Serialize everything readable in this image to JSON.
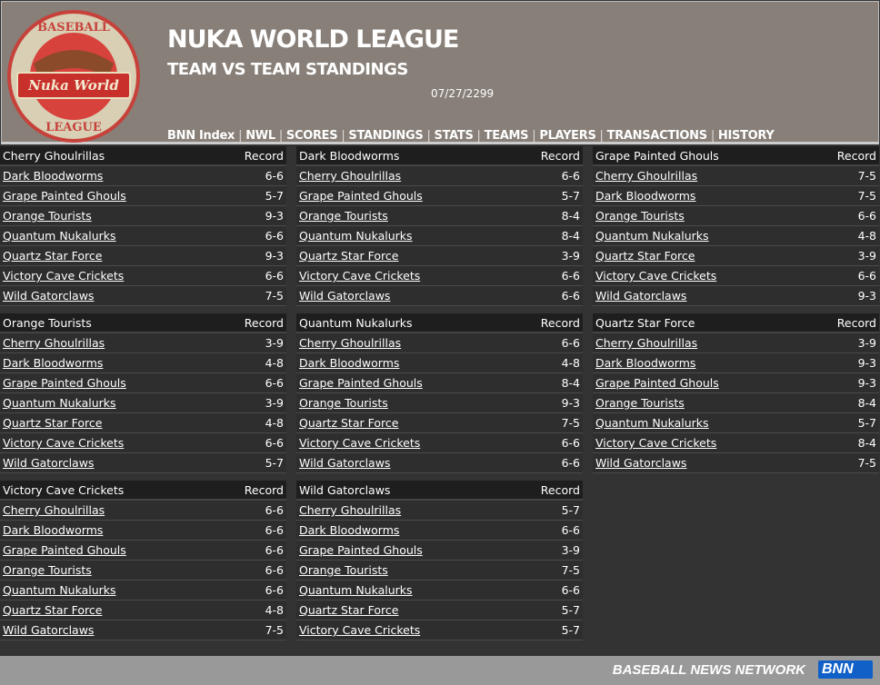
{
  "header": {
    "title": "NUKA WORLD LEAGUE",
    "subtitle": "TEAM VS TEAM STANDINGS",
    "date": "07/27/2299",
    "logo_text": "BASEBALL Nuka World LEAGUE"
  },
  "nav": [
    "BNN Index",
    "NWL",
    "SCORES",
    "STANDINGS",
    "STATS",
    "TEAMS",
    "PLAYERS",
    "TRANSACTIONS",
    "HISTORY"
  ],
  "record_label": "Record",
  "tables": [
    {
      "team": "Cherry Ghoulrillas",
      "rows": [
        [
          "Dark Bloodworms",
          "6-6"
        ],
        [
          "Grape Painted Ghouls",
          "5-7"
        ],
        [
          "Orange Tourists",
          "9-3"
        ],
        [
          "Quantum Nukalurks",
          "6-6"
        ],
        [
          "Quartz Star Force",
          "9-3"
        ],
        [
          "Victory Cave Crickets",
          "6-6"
        ],
        [
          "Wild Gatorclaws",
          "7-5"
        ]
      ]
    },
    {
      "team": "Dark Bloodworms",
      "rows": [
        [
          "Cherry Ghoulrillas",
          "6-6"
        ],
        [
          "Grape Painted Ghouls",
          "5-7"
        ],
        [
          "Orange Tourists",
          "8-4"
        ],
        [
          "Quantum Nukalurks",
          "8-4"
        ],
        [
          "Quartz Star Force",
          "3-9"
        ],
        [
          "Victory Cave Crickets",
          "6-6"
        ],
        [
          "Wild Gatorclaws",
          "6-6"
        ]
      ]
    },
    {
      "team": "Grape Painted Ghouls",
      "rows": [
        [
          "Cherry Ghoulrillas",
          "7-5"
        ],
        [
          "Dark Bloodworms",
          "7-5"
        ],
        [
          "Orange Tourists",
          "6-6"
        ],
        [
          "Quantum Nukalurks",
          "4-8"
        ],
        [
          "Quartz Star Force",
          "3-9"
        ],
        [
          "Victory Cave Crickets",
          "6-6"
        ],
        [
          "Wild Gatorclaws",
          "9-3"
        ]
      ]
    },
    {
      "team": "Orange Tourists",
      "rows": [
        [
          "Cherry Ghoulrillas",
          "3-9"
        ],
        [
          "Dark Bloodworms",
          "4-8"
        ],
        [
          "Grape Painted Ghouls",
          "6-6"
        ],
        [
          "Quantum Nukalurks",
          "3-9"
        ],
        [
          "Quartz Star Force",
          "4-8"
        ],
        [
          "Victory Cave Crickets",
          "6-6"
        ],
        [
          "Wild Gatorclaws",
          "5-7"
        ]
      ]
    },
    {
      "team": "Quantum Nukalurks",
      "rows": [
        [
          "Cherry Ghoulrillas",
          "6-6"
        ],
        [
          "Dark Bloodworms",
          "4-8"
        ],
        [
          "Grape Painted Ghouls",
          "8-4"
        ],
        [
          "Orange Tourists",
          "9-3"
        ],
        [
          "Quartz Star Force",
          "7-5"
        ],
        [
          "Victory Cave Crickets",
          "6-6"
        ],
        [
          "Wild Gatorclaws",
          "6-6"
        ]
      ]
    },
    {
      "team": "Quartz Star Force",
      "rows": [
        [
          "Cherry Ghoulrillas",
          "3-9"
        ],
        [
          "Dark Bloodworms",
          "9-3"
        ],
        [
          "Grape Painted Ghouls",
          "9-3"
        ],
        [
          "Orange Tourists",
          "8-4"
        ],
        [
          "Quantum Nukalurks",
          "5-7"
        ],
        [
          "Victory Cave Crickets",
          "8-4"
        ],
        [
          "Wild Gatorclaws",
          "7-5"
        ]
      ]
    },
    {
      "team": "Victory Cave Crickets",
      "rows": [
        [
          "Cherry Ghoulrillas",
          "6-6"
        ],
        [
          "Dark Bloodworms",
          "6-6"
        ],
        [
          "Grape Painted Ghouls",
          "6-6"
        ],
        [
          "Orange Tourists",
          "6-6"
        ],
        [
          "Quantum Nukalurks",
          "6-6"
        ],
        [
          "Quartz Star Force",
          "4-8"
        ],
        [
          "Wild Gatorclaws",
          "7-5"
        ]
      ]
    },
    {
      "team": "Wild Gatorclaws",
      "rows": [
        [
          "Cherry Ghoulrillas",
          "5-7"
        ],
        [
          "Dark Bloodworms",
          "6-6"
        ],
        [
          "Grape Painted Ghouls",
          "3-9"
        ],
        [
          "Orange Tourists",
          "7-5"
        ],
        [
          "Quantum Nukalurks",
          "6-6"
        ],
        [
          "Quartz Star Force",
          "5-7"
        ],
        [
          "Victory Cave Crickets",
          "5-7"
        ]
      ]
    }
  ],
  "footer": {
    "network": "BASEBALL NEWS NETWORK",
    "logo": "BNN"
  }
}
